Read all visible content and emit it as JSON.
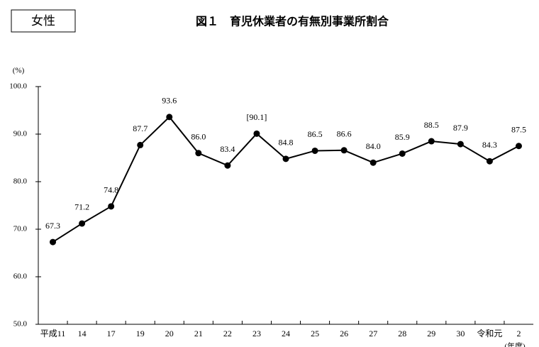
{
  "badge": "女性",
  "chart_data": {
    "type": "line",
    "title": "図１　育児休業者の有無別事業所割合",
    "y_unit": "(%)",
    "x_unit": "(年度)",
    "categories": [
      "平成11",
      "14",
      "17",
      "19",
      "20",
      "21",
      "22",
      "23",
      "24",
      "25",
      "26",
      "27",
      "28",
      "29",
      "30",
      "令和元",
      "2"
    ],
    "series": [
      {
        "color": "#000000",
        "values": [
          67.3,
          71.2,
          74.8,
          87.7,
          93.6,
          86.0,
          83.4,
          90.1,
          84.8,
          86.5,
          86.6,
          84.0,
          85.9,
          88.5,
          87.9,
          84.3,
          87.5
        ],
        "value_labels": [
          "67.3",
          "71.2",
          "74.8",
          "87.7",
          "93.6",
          "86.0",
          "83.4",
          "[90.1]",
          "84.8",
          "86.5",
          "86.6",
          "84.0",
          "85.9",
          "88.5",
          "87.9",
          "84.3",
          "87.5"
        ]
      }
    ],
    "ylim": [
      50,
      100
    ],
    "yticks": [
      {
        "value": 50,
        "label": "50.0"
      },
      {
        "value": 60,
        "label": "60.0"
      },
      {
        "value": 70,
        "label": "70.0"
      },
      {
        "value": 80,
        "label": "80.0"
      },
      {
        "value": 90,
        "label": "90.0"
      },
      {
        "value": 100,
        "label": "100.0"
      }
    ],
    "grid": false
  }
}
